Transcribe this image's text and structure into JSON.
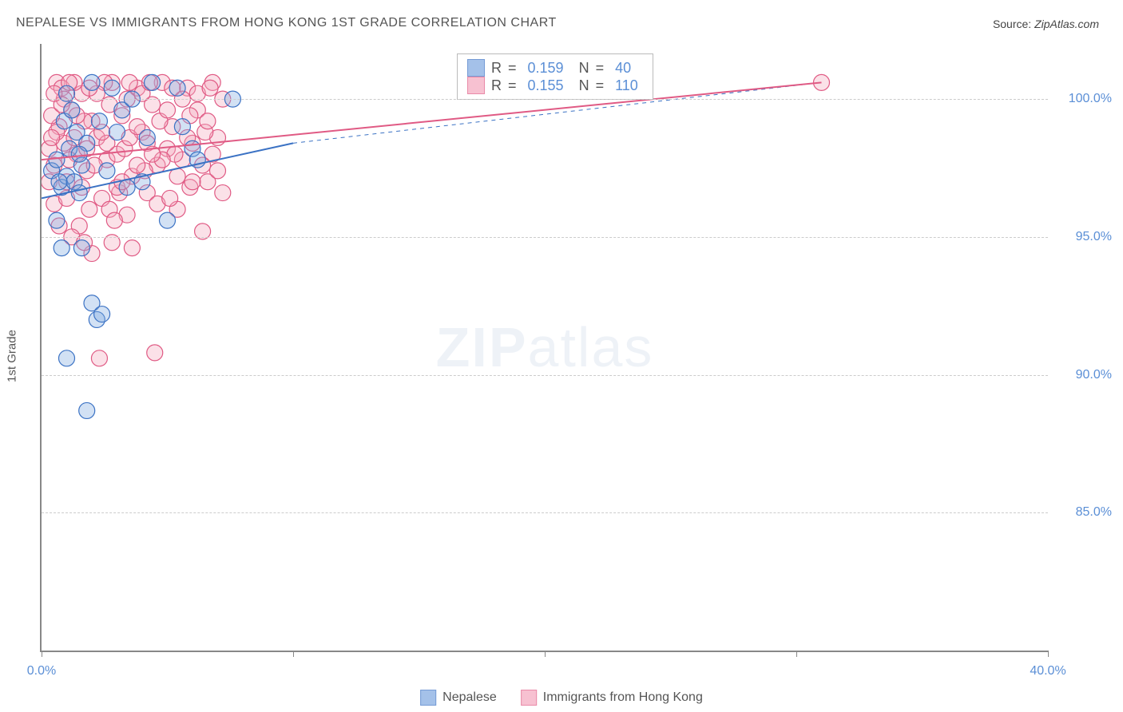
{
  "title": "NEPALESE VS IMMIGRANTS FROM HONG KONG 1ST GRADE CORRELATION CHART",
  "source_label": "Source:",
  "source_value": "ZipAtlas.com",
  "ylabel": "1st Grade",
  "watermark_bold": "ZIP",
  "watermark_light": "atlas",
  "chart": {
    "type": "scatter",
    "background_color": "#ffffff",
    "grid_color": "#cccccc",
    "axis_color": "#888888",
    "tick_color": "#5b8fd6",
    "xlim": [
      0,
      40
    ],
    "ylim": [
      80,
      102
    ],
    "xticks": [
      0,
      10,
      20,
      30,
      40
    ],
    "xtick_labels": [
      "0.0%",
      "",
      "",
      "",
      "40.0%"
    ],
    "yticks": [
      85,
      90,
      95,
      100
    ],
    "ytick_labels": [
      "85.0%",
      "90.0%",
      "95.0%",
      "100.0%"
    ],
    "marker_radius": 10,
    "marker_fill_opacity": 0.35,
    "marker_stroke_width": 1.2,
    "trend_line_width": 2
  },
  "series": [
    {
      "name": "Nepalese",
      "color_fill": "#7ea8e0",
      "color_stroke": "#3b72c4",
      "R": "0.159",
      "N": "40",
      "trend": {
        "x1": 0,
        "y1": 96.4,
        "x2": 10,
        "y2": 98.4,
        "dash_x2": 31,
        "dash_y2": 100.6
      },
      "points": [
        [
          0.4,
          97.4
        ],
        [
          0.6,
          97.8
        ],
        [
          0.8,
          96.8
        ],
        [
          1.0,
          97.2
        ],
        [
          1.1,
          98.2
        ],
        [
          1.3,
          97.0
        ],
        [
          1.4,
          98.8
        ],
        [
          0.6,
          95.6
        ],
        [
          0.8,
          94.6
        ],
        [
          0.9,
          99.2
        ],
        [
          1.2,
          99.6
        ],
        [
          1.5,
          96.6
        ],
        [
          1.6,
          97.6
        ],
        [
          1.8,
          98.4
        ],
        [
          2.0,
          92.6
        ],
        [
          2.2,
          92.0
        ],
        [
          2.4,
          92.2
        ],
        [
          1.0,
          90.6
        ],
        [
          2.6,
          97.4
        ],
        [
          2.8,
          100.4
        ],
        [
          3.0,
          98.8
        ],
        [
          3.2,
          99.6
        ],
        [
          3.4,
          96.8
        ],
        [
          3.6,
          100.0
        ],
        [
          4.0,
          97.0
        ],
        [
          4.2,
          98.6
        ],
        [
          4.4,
          100.6
        ],
        [
          5.0,
          95.6
        ],
        [
          5.4,
          100.4
        ],
        [
          5.6,
          99.0
        ],
        [
          6.0,
          98.2
        ],
        [
          6.2,
          97.8
        ],
        [
          1.8,
          88.7
        ],
        [
          1.6,
          94.6
        ],
        [
          0.7,
          97.0
        ],
        [
          2.0,
          100.6
        ],
        [
          1.0,
          100.2
        ],
        [
          2.3,
          99.2
        ],
        [
          1.5,
          98.0
        ],
        [
          7.6,
          100.0
        ]
      ]
    },
    {
      "name": "Immigrants from Hong Kong",
      "color_fill": "#f4a8be",
      "color_stroke": "#e05a84",
      "R": "0.155",
      "N": "110",
      "trend": {
        "x1": 0,
        "y1": 97.8,
        "x2": 31,
        "y2": 100.6
      },
      "points": [
        [
          0.3,
          98.2
        ],
        [
          0.5,
          97.6
        ],
        [
          0.7,
          99.0
        ],
        [
          0.9,
          98.4
        ],
        [
          1.0,
          97.0
        ],
        [
          1.2,
          99.6
        ],
        [
          1.4,
          98.0
        ],
        [
          1.6,
          100.2
        ],
        [
          1.8,
          97.4
        ],
        [
          2.0,
          99.2
        ],
        [
          2.2,
          98.6
        ],
        [
          2.4,
          96.4
        ],
        [
          2.6,
          97.8
        ],
        [
          2.8,
          100.6
        ],
        [
          3.0,
          98.0
        ],
        [
          3.2,
          99.4
        ],
        [
          3.4,
          95.8
        ],
        [
          3.6,
          97.2
        ],
        [
          3.8,
          100.4
        ],
        [
          4.0,
          98.8
        ],
        [
          4.2,
          96.6
        ],
        [
          4.4,
          99.8
        ],
        [
          4.6,
          97.6
        ],
        [
          4.8,
          100.6
        ],
        [
          5.0,
          98.2
        ],
        [
          5.2,
          99.0
        ],
        [
          5.4,
          96.0
        ],
        [
          5.6,
          97.8
        ],
        [
          5.8,
          100.4
        ],
        [
          6.0,
          98.4
        ],
        [
          6.2,
          99.6
        ],
        [
          6.4,
          95.2
        ],
        [
          6.6,
          97.0
        ],
        [
          6.8,
          100.6
        ],
        [
          7.0,
          98.6
        ],
        [
          7.2,
          100.0
        ],
        [
          0.6,
          100.6
        ],
        [
          0.8,
          100.4
        ],
        [
          1.3,
          100.6
        ],
        [
          2.5,
          100.6
        ],
        [
          3.5,
          100.6
        ],
        [
          4.5,
          90.8
        ],
        [
          2.0,
          94.4
        ],
        [
          1.5,
          95.4
        ],
        [
          2.3,
          90.6
        ],
        [
          3.1,
          96.6
        ],
        [
          1.9,
          96.0
        ],
        [
          0.5,
          96.2
        ],
        [
          0.7,
          95.4
        ],
        [
          1.1,
          97.8
        ],
        [
          1.3,
          98.6
        ],
        [
          0.4,
          99.4
        ],
        [
          0.9,
          100.0
        ],
        [
          1.7,
          99.2
        ],
        [
          2.1,
          97.6
        ],
        [
          2.7,
          96.0
        ],
        [
          3.3,
          98.2
        ],
        [
          4.1,
          97.4
        ],
        [
          4.7,
          99.2
        ],
        [
          5.3,
          98.0
        ],
        [
          5.9,
          96.8
        ],
        [
          6.5,
          98.8
        ],
        [
          0.3,
          97.0
        ],
        [
          0.6,
          98.8
        ],
        [
          1.0,
          96.4
        ],
        [
          1.4,
          99.4
        ],
        [
          1.8,
          98.2
        ],
        [
          2.2,
          100.2
        ],
        [
          2.6,
          98.4
        ],
        [
          3.0,
          96.8
        ],
        [
          3.4,
          100.0
        ],
        [
          3.8,
          97.6
        ],
        [
          4.2,
          98.4
        ],
        [
          4.6,
          96.2
        ],
        [
          5.0,
          99.6
        ],
        [
          5.4,
          97.2
        ],
        [
          5.8,
          98.6
        ],
        [
          6.2,
          100.2
        ],
        [
          6.6,
          99.2
        ],
        [
          7.0,
          97.4
        ],
        [
          1.2,
          95.0
        ],
        [
          2.8,
          94.8
        ],
        [
          3.6,
          94.6
        ],
        [
          0.4,
          98.6
        ],
        [
          0.8,
          99.8
        ],
        [
          1.6,
          96.8
        ],
        [
          3.2,
          97.0
        ],
        [
          4.0,
          100.2
        ],
        [
          4.8,
          97.8
        ],
        [
          5.6,
          100.0
        ],
        [
          6.0,
          97.0
        ],
        [
          6.8,
          98.0
        ],
        [
          7.2,
          96.6
        ],
        [
          0.5,
          100.2
        ],
        [
          1.1,
          100.6
        ],
        [
          1.9,
          100.4
        ],
        [
          2.7,
          99.8
        ],
        [
          3.5,
          98.6
        ],
        [
          4.3,
          100.6
        ],
        [
          5.1,
          96.4
        ],
        [
          5.9,
          99.4
        ],
        [
          6.7,
          100.4
        ],
        [
          2.4,
          98.8
        ],
        [
          3.8,
          99.0
        ],
        [
          4.4,
          98.0
        ],
        [
          5.2,
          100.4
        ],
        [
          6.4,
          97.6
        ],
        [
          1.7,
          94.8
        ],
        [
          2.9,
          95.6
        ],
        [
          31.0,
          100.6
        ]
      ]
    }
  ],
  "legend": {
    "items": [
      {
        "label": "Nepalese",
        "fill": "#7ea8e0",
        "stroke": "#3b72c4"
      },
      {
        "label": "Immigrants from Hong Kong",
        "fill": "#f4a8be",
        "stroke": "#e05a84"
      }
    ]
  },
  "stat_box": {
    "R_label": "R",
    "N_label": "N",
    "eq": "="
  }
}
